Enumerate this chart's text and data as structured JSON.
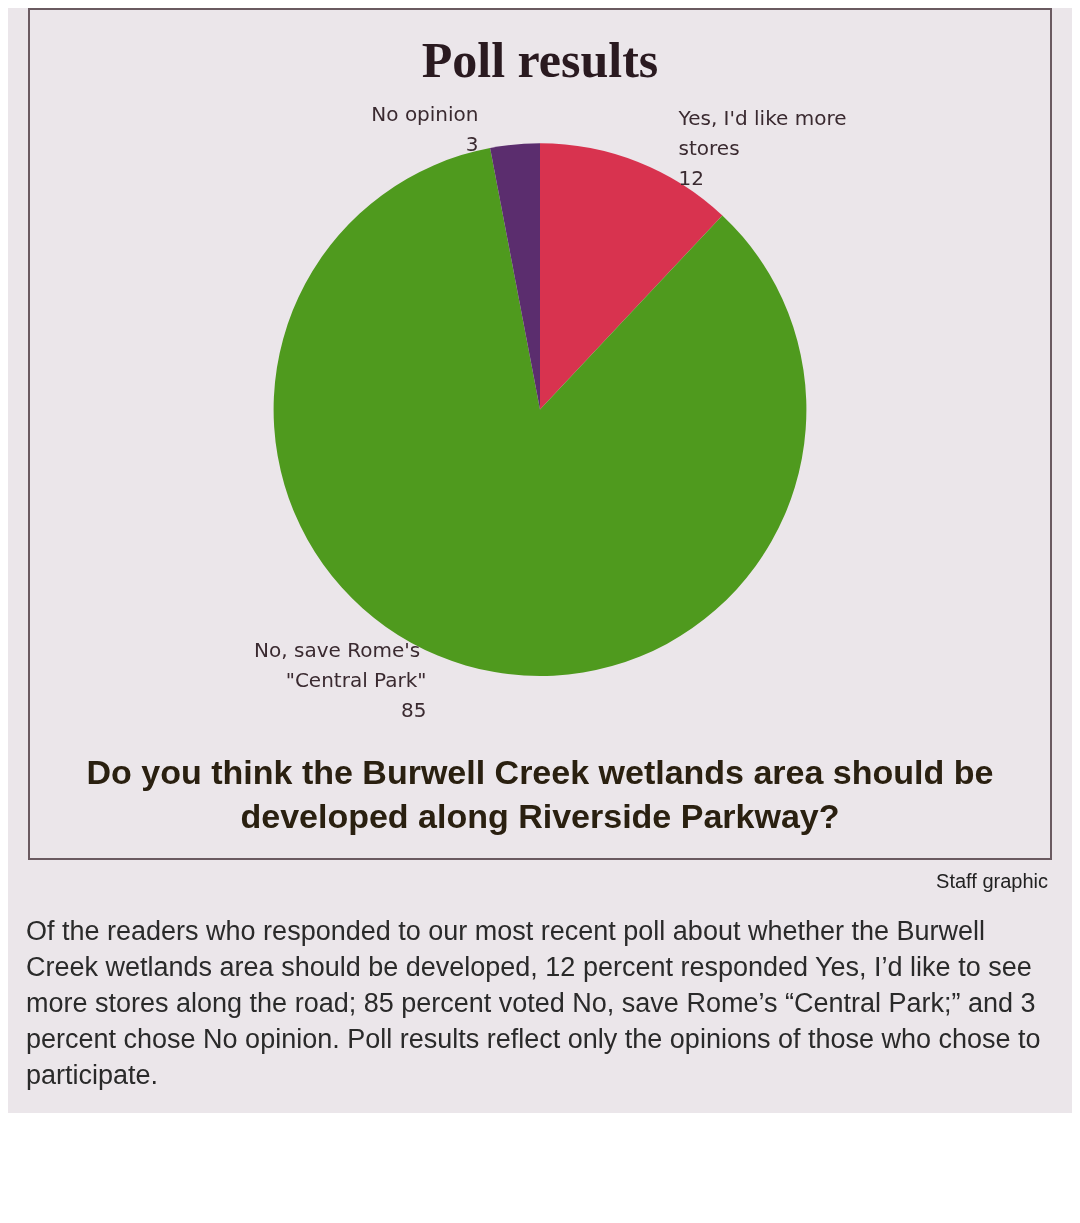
{
  "chart_data": {
    "type": "pie",
    "title": "Poll results",
    "categories": [
      "Yes, I'd like more stores",
      "No, save Rome's \"Central Park\"",
      "No opinion"
    ],
    "values": [
      12,
      85,
      3
    ],
    "colors": [
      "#d8334f",
      "#4f9a1e",
      "#5b2d6e"
    ],
    "data_labels": true,
    "legend": false,
    "annotations": [
      "Do you think the Burwell Creek wetlands area should be developed along Riverside Parkway?",
      "Staff graphic",
      "Of the readers who responded to our most recent poll about whether the Burwell Creek wetlands area should be developed, 12 percent responded Yes, I’d like to see more stores along the road; 85 percent voted No, save Rome’s “Central Park;” and 3 percent chose No opinion. Poll results reflect only the opinions of those who chose to participate."
    ]
  }
}
